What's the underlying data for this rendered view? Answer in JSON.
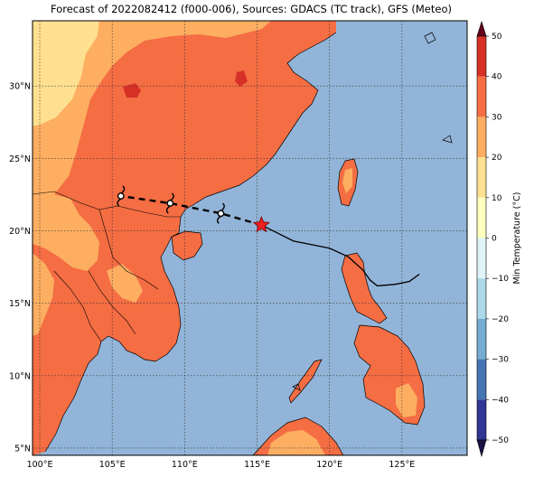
{
  "title": "Forecast of 2022082412 (f000-006), Sources: GDACS (TC track), GFS (Meteo)",
  "map": {
    "lon_range": [
      99.5,
      129.5
    ],
    "lat_range": [
      4.5,
      34.5
    ],
    "lon_ticks": [
      "100°E",
      "105°E",
      "110°E",
      "115°E",
      "120°E",
      "125°E"
    ],
    "lat_ticks": [
      "5°N",
      "10°N",
      "15°N",
      "20°N",
      "25°N",
      "30°N"
    ],
    "colors": {
      "ocean": "#92b4d8",
      "land_warm": "#f46d43",
      "land_mid": "#fdae61",
      "land_cool": "#fee090",
      "land_hot": "#d73027",
      "land_cold_patch": "#fdae61"
    }
  },
  "track": {
    "past_color": "#000000",
    "forecast_color": "#000000",
    "current_marker": "red-star-icon",
    "forecast_marker": "cyclone-symbol-icon",
    "past_points": [
      {
        "lon": 126.2,
        "lat": 17.0
      },
      {
        "lon": 125.5,
        "lat": 16.5
      },
      {
        "lon": 124.5,
        "lat": 16.3
      },
      {
        "lon": 123.3,
        "lat": 16.2
      },
      {
        "lon": 122.8,
        "lat": 16.6
      },
      {
        "lon": 122.3,
        "lat": 17.3
      },
      {
        "lon": 121.3,
        "lat": 18.2
      },
      {
        "lon": 120.0,
        "lat": 18.8
      },
      {
        "lon": 117.5,
        "lat": 19.3
      },
      {
        "lon": 116.3,
        "lat": 19.9
      },
      {
        "lon": 115.3,
        "lat": 20.4
      }
    ],
    "current": {
      "lon": 115.3,
      "lat": 20.4
    },
    "forecast_points": [
      {
        "lon": 115.3,
        "lat": 20.4
      },
      {
        "lon": 112.5,
        "lat": 21.2
      },
      {
        "lon": 109.0,
        "lat": 21.9
      },
      {
        "lon": 105.6,
        "lat": 22.4
      }
    ]
  },
  "colorbar": {
    "label": "Min Temperature (°C)",
    "ticks": [
      "50",
      "40",
      "30",
      "20",
      "10",
      "0",
      "−10",
      "−20",
      "−30",
      "−40",
      "−50"
    ],
    "bands": [
      "#a50026",
      "#d73027",
      "#f46d43",
      "#fdae61",
      "#fee090",
      "#ffffbf",
      "#e0f3f8",
      "#abd9e9",
      "#74add1",
      "#4575b4",
      "#313695"
    ]
  }
}
